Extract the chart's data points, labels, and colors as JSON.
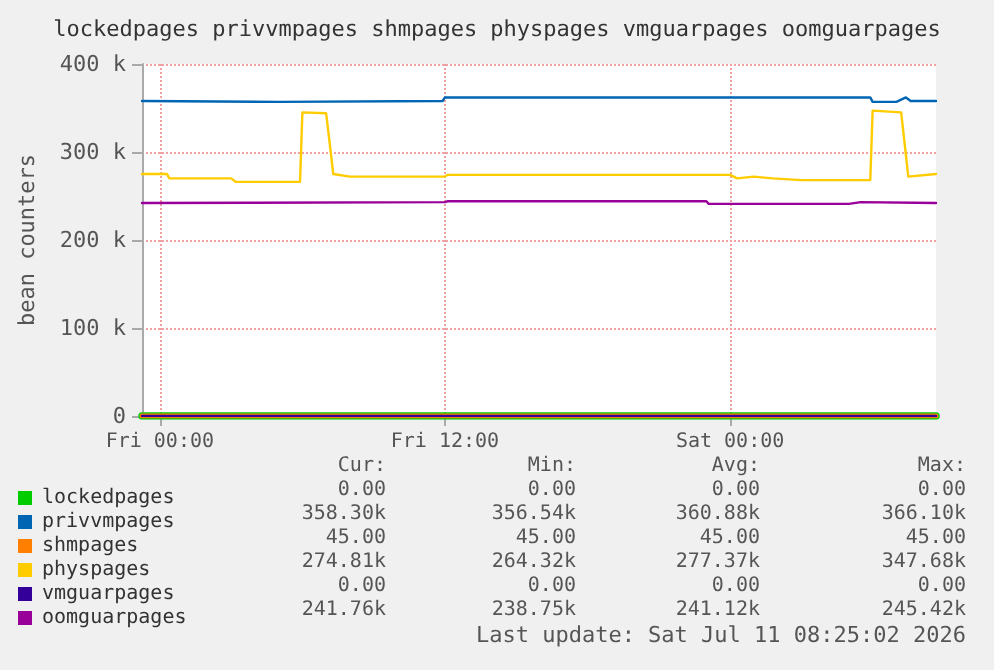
{
  "chart_data": {
    "type": "line",
    "title": "lockedpages privvmpages shmpages physpages vmguarpages oomguarpages",
    "ylabel": "bean counters",
    "xlim": [
      "2026-07-09T23:15",
      "2026-07-11T08:40"
    ],
    "xticks": [
      {
        "value": "2026-07-10T00:00",
        "label": "Fri 00:00"
      },
      {
        "value": "2026-07-10T12:00",
        "label": "Fri 12:00"
      },
      {
        "value": "2026-07-11T00:00",
        "label": "Sat 00:00"
      }
    ],
    "ylim": [
      0,
      400000
    ],
    "yticks": [
      {
        "value": 0,
        "label": "0"
      },
      {
        "value": 100000,
        "label": "100 k"
      },
      {
        "value": 200000,
        "label": "200 k"
      },
      {
        "value": 300000,
        "label": "300 k"
      },
      {
        "value": 400000,
        "label": "400 k"
      }
    ],
    "grid": true,
    "legend": "bottom",
    "marker": "none",
    "line_style": "solid",
    "series": [
      {
        "name": "lockedpages",
        "color": "#00cc00",
        "x": [
          "2026-07-09T23:15",
          "2026-07-11T08:40"
        ],
        "values": [
          0,
          0
        ]
      },
      {
        "name": "privvmpages",
        "color": "#0066b3",
        "x": [
          "2026-07-09T23:15",
          "2026-07-10T05:00",
          "2026-07-10T11:54",
          "2026-07-10T12:00",
          "2026-07-11T01:00",
          "2026-07-11T05:54",
          "2026-07-11T06:00",
          "2026-07-11T07:00",
          "2026-07-11T07:24",
          "2026-07-11T07:36",
          "2026-07-11T08:40"
        ],
        "values": [
          358000,
          357000,
          358000,
          362000,
          362000,
          362000,
          357000,
          357000,
          362000,
          358000,
          358000
        ]
      },
      {
        "name": "shmpages",
        "color": "#ff8000",
        "x": [
          "2026-07-09T23:15",
          "2026-07-11T08:40"
        ],
        "values": [
          45,
          45
        ]
      },
      {
        "name": "physpages",
        "color": "#ffcc00",
        "x": [
          "2026-07-09T23:15",
          "2026-07-10T00:18",
          "2026-07-10T00:24",
          "2026-07-10T03:00",
          "2026-07-10T03:12",
          "2026-07-10T05:54",
          "2026-07-10T06:00",
          "2026-07-10T07:00",
          "2026-07-10T07:18",
          "2026-07-10T08:00",
          "2026-07-10T12:00",
          "2026-07-10T12:06",
          "2026-07-11T00:00",
          "2026-07-11T00:18",
          "2026-07-11T01:00",
          "2026-07-11T01:48",
          "2026-07-11T03:00",
          "2026-07-11T05:54",
          "2026-07-11T06:00",
          "2026-07-11T07:12",
          "2026-07-11T07:30",
          "2026-07-11T08:40"
        ],
        "values": [
          275000,
          275000,
          270000,
          270000,
          266000,
          266000,
          345000,
          344000,
          275000,
          272000,
          272000,
          274000,
          274000,
          270000,
          272000,
          270000,
          268000,
          268000,
          347000,
          345000,
          272000,
          275000
        ]
      },
      {
        "name": "vmguarpages",
        "color": "#330099",
        "x": [
          "2026-07-09T23:15",
          "2026-07-11T08:40"
        ],
        "values": [
          0,
          0
        ]
      },
      {
        "name": "oomguarpages",
        "color": "#990099",
        "x": [
          "2026-07-09T23:15",
          "2026-07-10T12:00",
          "2026-07-10T12:06",
          "2026-07-10T23:00",
          "2026-07-10T23:06",
          "2026-07-11T05:00",
          "2026-07-11T05:30",
          "2026-07-11T08:40"
        ],
        "values": [
          242000,
          243000,
          244000,
          244000,
          241000,
          241000,
          243000,
          242000
        ]
      }
    ],
    "annotations": [
      "Cur:",
      "Min:",
      "Avg:",
      "Max:",
      "0.00",
      "0.00",
      "0.00",
      "0.00",
      "358.30k",
      "356.54k",
      "360.88k",
      "366.10k",
      "45.00",
      "45.00",
      "45.00",
      "45.00",
      "274.81k",
      "264.32k",
      "277.37k",
      "347.68k",
      "0.00",
      "0.00",
      "0.00",
      "0.00",
      "241.76k",
      "238.75k",
      "241.12k",
      "245.42k",
      "Last update: Sat Jul 11 08:25:02 2026"
    ]
  }
}
